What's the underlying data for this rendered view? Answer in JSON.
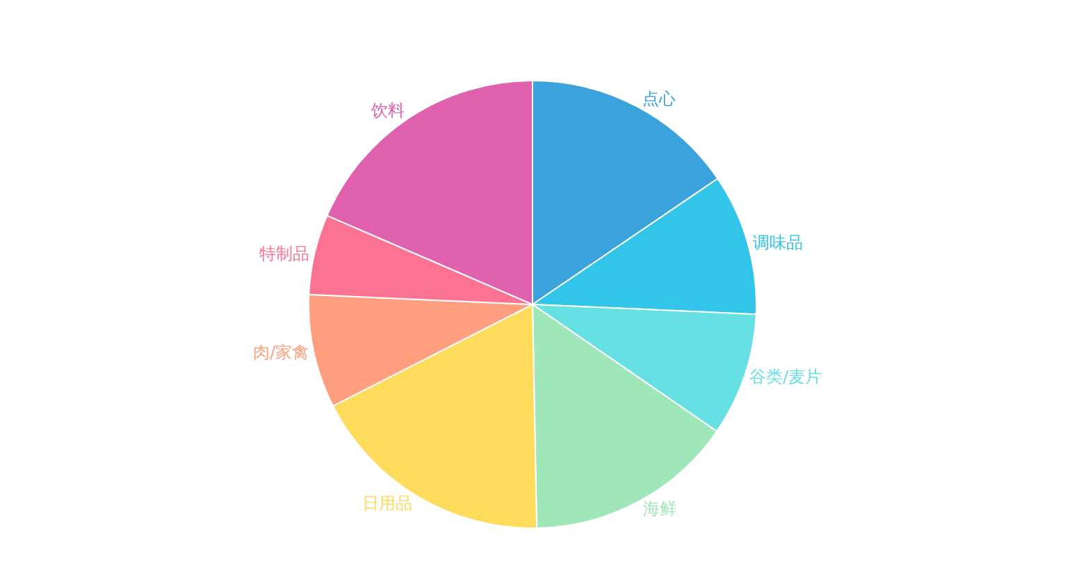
{
  "chart_data": {
    "type": "pie",
    "legend": false,
    "categories": [
      "点心",
      "调味品",
      "谷类/麦片",
      "海鲜",
      "日用品",
      "肉/家禽",
      "特制品",
      "饮料"
    ],
    "values": [
      15.5,
      10.2,
      8.9,
      15.1,
      17.8,
      8.2,
      5.8,
      18.5
    ],
    "colors": [
      "#3ba3db",
      "#32c5e9",
      "#67e0e3",
      "#9fe6b8",
      "#ffdb5c",
      "#ff9f7f",
      "#fb7293",
      "#e062ae"
    ]
  }
}
